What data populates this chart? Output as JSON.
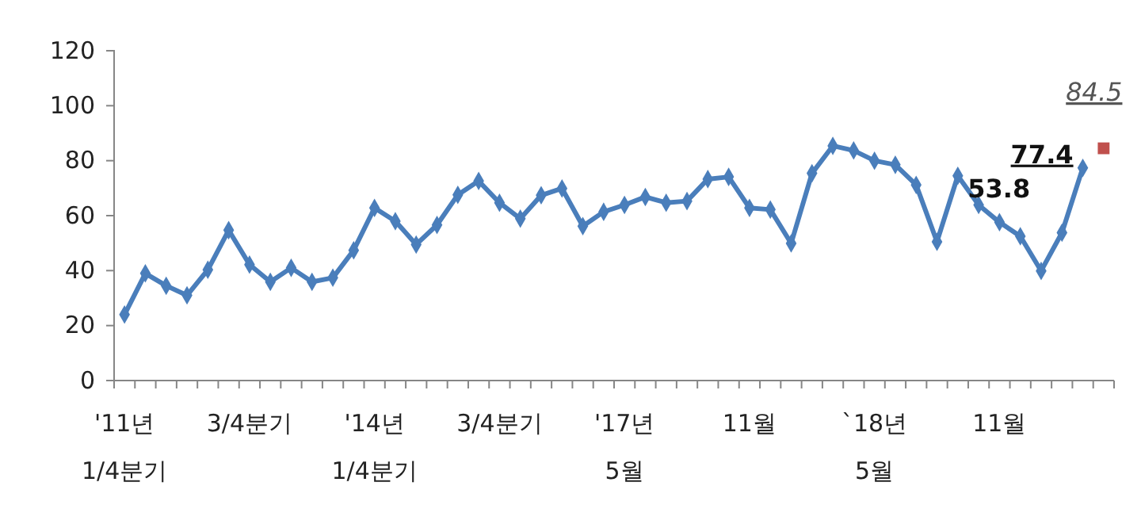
{
  "chart_data": {
    "type": "line",
    "categories": [
      "'11년 1/4분기",
      null,
      null,
      null,
      null,
      null,
      "3/4분기",
      null,
      null,
      null,
      null,
      null,
      "'14년 1/4분기",
      null,
      null,
      null,
      null,
      null,
      "3/4분기",
      null,
      null,
      null,
      null,
      null,
      "'17년 5월",
      null,
      null,
      null,
      null,
      null,
      "11월",
      null,
      null,
      null,
      null,
      null,
      "`18년 5월",
      null,
      null,
      null,
      null,
      null,
      "11월",
      null,
      null,
      null,
      null,
      null
    ],
    "ylim": [
      0,
      120
    ],
    "yticks": [
      0,
      20,
      40,
      60,
      80,
      100,
      120
    ],
    "grid": false,
    "series": [
      {
        "color": "#4a7ebb",
        "marker": "diamond",
        "values": [
          24,
          39,
          34.5,
          31,
          40.3,
          54.7,
          42.2,
          35.9,
          41,
          35.9,
          37.4,
          47.4,
          62.8,
          58,
          49.5,
          56.6,
          67.6,
          72.6,
          64.7,
          58.9,
          67.4,
          69.9,
          56.2,
          61.4,
          63.9,
          66.8,
          64.7,
          65.3,
          73.3,
          74.1,
          62.8,
          62.2,
          49.9,
          75.4,
          85.4,
          83.7,
          80,
          78.5,
          71.2,
          50.5,
          74.5,
          63.9,
          57.6,
          52.5,
          39.9,
          53.8,
          77.4,
          null
        ],
        "value_labels": [
          null,
          null,
          null,
          null,
          null,
          null,
          null,
          null,
          null,
          null,
          null,
          null,
          null,
          null,
          null,
          null,
          null,
          null,
          null,
          null,
          null,
          null,
          null,
          null,
          null,
          null,
          null,
          null,
          null,
          null,
          null,
          null,
          null,
          null,
          null,
          null,
          null,
          null,
          null,
          null,
          null,
          null,
          null,
          null,
          null,
          "53.8",
          "77.4",
          null
        ]
      },
      {
        "type": "scatter",
        "color": "#c0504d",
        "marker": "square",
        "values": [
          null,
          null,
          null,
          null,
          null,
          null,
          null,
          null,
          null,
          null,
          null,
          null,
          null,
          null,
          null,
          null,
          null,
          null,
          null,
          null,
          null,
          null,
          null,
          null,
          null,
          null,
          null,
          null,
          null,
          null,
          null,
          null,
          null,
          null,
          null,
          null,
          null,
          null,
          null,
          null,
          null,
          null,
          null,
          null,
          null,
          null,
          null,
          84.5
        ],
        "value_labels": [
          null,
          null,
          null,
          null,
          null,
          null,
          null,
          null,
          null,
          null,
          null,
          null,
          null,
          null,
          null,
          null,
          null,
          null,
          null,
          null,
          null,
          null,
          null,
          null,
          null,
          null,
          null,
          null,
          null,
          null,
          null,
          null,
          null,
          null,
          null,
          null,
          null,
          null,
          null,
          null,
          null,
          null,
          null,
          null,
          null,
          null,
          null,
          "84.5"
        ]
      }
    ]
  }
}
